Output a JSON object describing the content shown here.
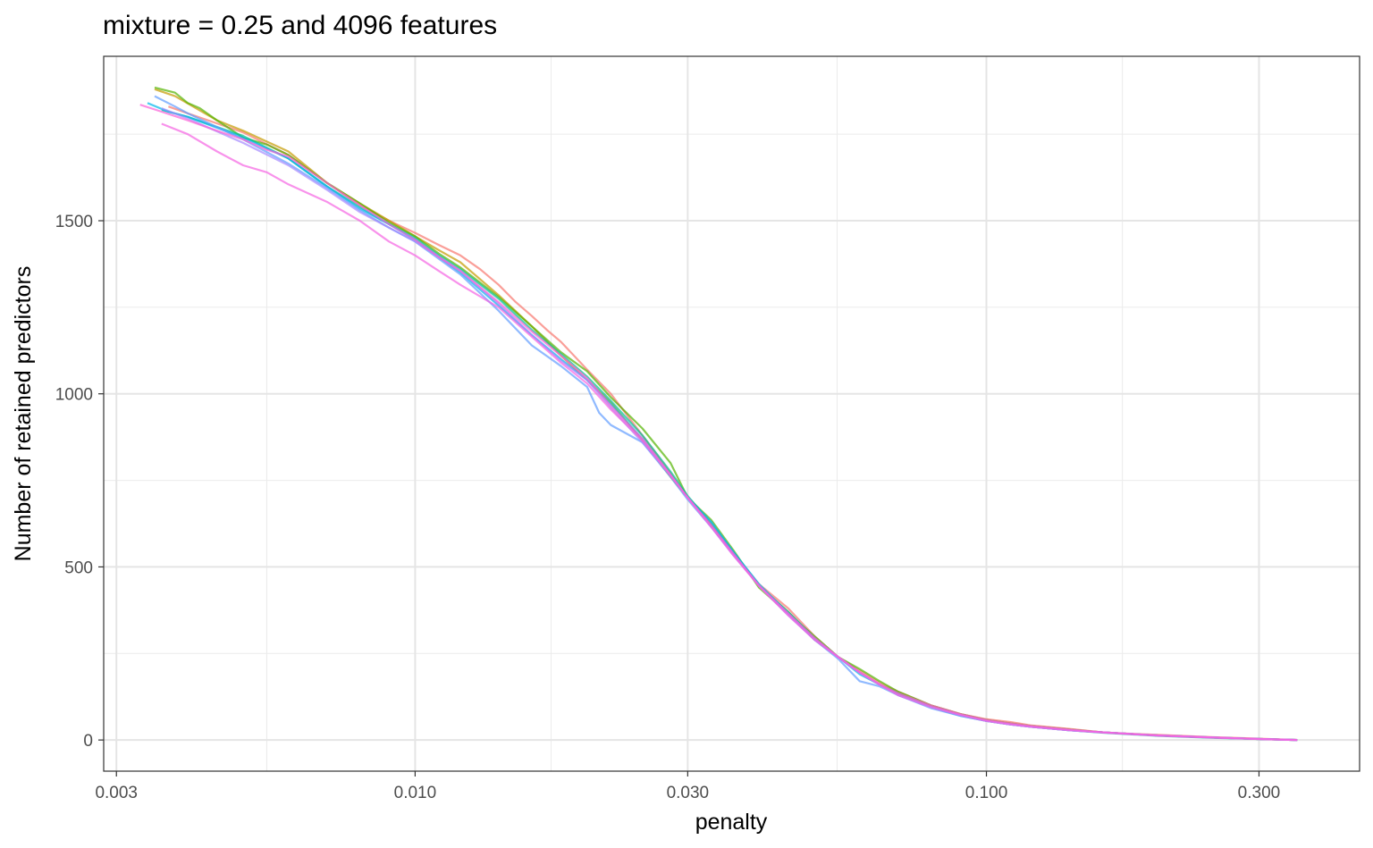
{
  "chart_data": {
    "type": "line",
    "title": "mixture =  0.25 and 4096 features",
    "xlabel": "penalty",
    "ylabel": "Number of retained predictors",
    "x_scale": "log10",
    "xlim": [
      0.00285,
      0.45
    ],
    "ylim": [
      -90,
      1975
    ],
    "x_ticks": [
      0.003,
      0.01,
      0.03,
      0.1,
      0.3
    ],
    "x_tick_labels": [
      "0.003",
      "0.010",
      "0.030",
      "0.100",
      "0.300"
    ],
    "x_minor_ticks": [
      0.0055,
      0.0173,
      0.0548,
      0.173
    ],
    "y_ticks": [
      0,
      500,
      1000,
      1500
    ],
    "y_tick_labels": [
      "0",
      "500",
      "1000",
      "1500"
    ],
    "y_minor_ticks": [
      250,
      750,
      1250,
      1750
    ],
    "grid": true,
    "legend": "none",
    "series": [
      {
        "color": "#F8766D",
        "x": [
          0.0037,
          0.004,
          0.005,
          0.006,
          0.007,
          0.008,
          0.009,
          0.01,
          0.011,
          0.012,
          0.013,
          0.014,
          0.015,
          0.016,
          0.017,
          0.018,
          0.02,
          0.022,
          0.025,
          0.028,
          0.03,
          0.033,
          0.036,
          0.04,
          0.045,
          0.05,
          0.055,
          0.06,
          0.065,
          0.07,
          0.08,
          0.09,
          0.1,
          0.11,
          0.12,
          0.14,
          0.16,
          0.18,
          0.2,
          0.25,
          0.3,
          0.35
        ],
        "values": [
          1830,
          1810,
          1755,
          1690,
          1610,
          1545,
          1500,
          1465,
          1430,
          1400,
          1360,
          1315,
          1265,
          1225,
          1185,
          1150,
          1070,
          1000,
          880,
          770,
          700,
          620,
          540,
          450,
          380,
          300,
          240,
          200,
          165,
          140,
          100,
          75,
          60,
          52,
          42,
          32,
          22,
          18,
          15,
          8,
          4,
          0
        ]
      },
      {
        "color": "#C49A00",
        "x": [
          0.0035,
          0.0038,
          0.0045,
          0.005,
          0.006,
          0.007,
          0.008,
          0.009,
          0.01,
          0.011,
          0.012,
          0.014,
          0.016,
          0.018,
          0.02,
          0.022,
          0.025,
          0.028,
          0.03,
          0.033,
          0.036,
          0.04,
          0.045,
          0.05,
          0.055,
          0.06,
          0.065,
          0.07,
          0.08,
          0.09,
          0.1,
          0.11,
          0.12,
          0.14,
          0.16,
          0.18,
          0.2,
          0.25,
          0.3,
          0.35
        ],
        "values": [
          1880,
          1860,
          1790,
          1760,
          1700,
          1610,
          1550,
          1500,
          1455,
          1415,
          1380,
          1285,
          1195,
          1110,
          1040,
          975,
          865,
          760,
          700,
          620,
          540,
          445,
          370,
          290,
          240,
          195,
          160,
          135,
          100,
          75,
          58,
          48,
          40,
          30,
          22,
          17,
          13,
          7,
          3,
          0
        ]
      },
      {
        "color": "#53B400",
        "x": [
          0.0035,
          0.0038,
          0.004,
          0.0042,
          0.0045,
          0.005,
          0.0055,
          0.006,
          0.007,
          0.008,
          0.009,
          0.01,
          0.011,
          0.012,
          0.014,
          0.016,
          0.018,
          0.02,
          0.022,
          0.025,
          0.028,
          0.03,
          0.033,
          0.036,
          0.04,
          0.045,
          0.05,
          0.055,
          0.06,
          0.065,
          0.07,
          0.08,
          0.09,
          0.1,
          0.11,
          0.12,
          0.14,
          0.16,
          0.18,
          0.2,
          0.25,
          0.3,
          0.35
        ],
        "values": [
          1885,
          1870,
          1840,
          1825,
          1790,
          1740,
          1720,
          1690,
          1610,
          1550,
          1495,
          1455,
          1405,
          1365,
          1280,
          1195,
          1120,
          1065,
          990,
          900,
          800,
          700,
          635,
          550,
          440,
          365,
          300,
          240,
          205,
          170,
          140,
          100,
          75,
          58,
          48,
          40,
          30,
          22,
          17,
          13,
          7,
          3,
          0
        ]
      },
      {
        "color": "#00C094",
        "x": [
          0.0036,
          0.004,
          0.005,
          0.006,
          0.007,
          0.008,
          0.009,
          0.01,
          0.011,
          0.012,
          0.014,
          0.016,
          0.018,
          0.02,
          0.022,
          0.025,
          0.028,
          0.03,
          0.033,
          0.036,
          0.04,
          0.045,
          0.05,
          0.055,
          0.06,
          0.065,
          0.07,
          0.08,
          0.09,
          0.1,
          0.11,
          0.12,
          0.14,
          0.16,
          0.18,
          0.2,
          0.25,
          0.3,
          0.35
        ],
        "values": [
          1820,
          1800,
          1745,
          1680,
          1600,
          1540,
          1490,
          1450,
          1400,
          1360,
          1275,
          1185,
          1115,
          1050,
          980,
          880,
          775,
          705,
          625,
          545,
          445,
          370,
          295,
          240,
          195,
          160,
          135,
          95,
          72,
          55,
          45,
          38,
          28,
          21,
          16,
          12,
          6,
          3,
          0
        ]
      },
      {
        "color": "#00B6EB",
        "x": [
          0.0034,
          0.0037,
          0.004,
          0.005,
          0.006,
          0.007,
          0.008,
          0.009,
          0.01,
          0.011,
          0.012,
          0.014,
          0.016,
          0.018,
          0.02,
          0.022,
          0.025,
          0.028,
          0.03,
          0.033,
          0.036,
          0.04,
          0.045,
          0.05,
          0.055,
          0.06,
          0.065,
          0.07,
          0.08,
          0.09,
          0.1,
          0.11,
          0.12,
          0.14,
          0.16,
          0.18,
          0.2,
          0.25,
          0.3,
          0.35
        ],
        "values": [
          1840,
          1815,
          1800,
          1740,
          1680,
          1600,
          1535,
          1490,
          1445,
          1395,
          1350,
          1255,
          1170,
          1100,
          1040,
          970,
          870,
          765,
          700,
          630,
          545,
          450,
          365,
          290,
          240,
          190,
          160,
          130,
          95,
          70,
          55,
          45,
          38,
          28,
          22,
          17,
          13,
          7,
          3,
          0
        ]
      },
      {
        "color": "#619CFF",
        "x": [
          0.0035,
          0.0038,
          0.004,
          0.005,
          0.006,
          0.007,
          0.008,
          0.009,
          0.01,
          0.011,
          0.012,
          0.014,
          0.016,
          0.018,
          0.02,
          0.021,
          0.022,
          0.025,
          0.028,
          0.03,
          0.033,
          0.036,
          0.04,
          0.045,
          0.05,
          0.055,
          0.06,
          0.065,
          0.07,
          0.08,
          0.09,
          0.1,
          0.11,
          0.12,
          0.14,
          0.16,
          0.18,
          0.2,
          0.25,
          0.3,
          0.35
        ],
        "values": [
          1860,
          1830,
          1810,
          1735,
          1665,
          1595,
          1530,
          1480,
          1440,
          1390,
          1345,
          1240,
          1140,
          1080,
          1020,
          945,
          910,
          860,
          760,
          695,
          615,
          540,
          445,
          365,
          290,
          235,
          170,
          155,
          130,
          92,
          70,
          55,
          45,
          38,
          28,
          22,
          17,
          13,
          7,
          3,
          0
        ]
      },
      {
        "color": "#A58AFF",
        "x": [
          0.0036,
          0.004,
          0.005,
          0.006,
          0.007,
          0.008,
          0.009,
          0.01,
          0.011,
          0.012,
          0.014,
          0.016,
          0.018,
          0.02,
          0.022,
          0.025,
          0.028,
          0.03,
          0.033,
          0.036,
          0.04,
          0.045,
          0.05,
          0.055,
          0.06,
          0.065,
          0.07,
          0.08,
          0.09,
          0.1,
          0.11,
          0.12,
          0.14,
          0.16,
          0.18,
          0.2,
          0.25,
          0.3,
          0.35
        ],
        "values": [
          1825,
          1795,
          1725,
          1660,
          1590,
          1525,
          1480,
          1440,
          1395,
          1355,
          1260,
          1170,
          1095,
          1040,
          960,
          860,
          765,
          700,
          615,
          535,
          445,
          360,
          290,
          240,
          195,
          160,
          130,
          95,
          72,
          55,
          45,
          38,
          28,
          22,
          17,
          13,
          7,
          3,
          0
        ]
      },
      {
        "color": "#FB61D7",
        "x": [
          0.0033,
          0.0036,
          0.004,
          0.0045,
          0.005,
          0.0055,
          0.006,
          0.007,
          0.008,
          0.009,
          0.01,
          0.011,
          0.012,
          0.014,
          0.016,
          0.018,
          0.02,
          0.022,
          0.025,
          0.028,
          0.03,
          0.033,
          0.036,
          0.04,
          0.045,
          0.05,
          0.055,
          0.06,
          0.065,
          0.07,
          0.08,
          0.09,
          0.1,
          0.11,
          0.12,
          0.14,
          0.16,
          0.18,
          0.2,
          0.25,
          0.3,
          0.35
        ],
        "values": [
          1835,
          1815,
          1790,
          1760,
          1735,
          1705,
          1685,
          1610,
          1545,
          1490,
          1445,
          1395,
          1355,
          1265,
          1180,
          1110,
          1045,
          965,
          870,
          765,
          700,
          620,
          540,
          445,
          365,
          295,
          240,
          195,
          160,
          135,
          100,
          75,
          58,
          48,
          40,
          30,
          22,
          17,
          13,
          7,
          3,
          0
        ]
      },
      {
        "color": "#F564E3",
        "x": [
          0.0036,
          0.004,
          0.0045,
          0.005,
          0.0055,
          0.006,
          0.007,
          0.008,
          0.009,
          0.01,
          0.011,
          0.012,
          0.014,
          0.016,
          0.018,
          0.02,
          0.022,
          0.025,
          0.028,
          0.03,
          0.033,
          0.036,
          0.04,
          0.045,
          0.05,
          0.055,
          0.06,
          0.065,
          0.07,
          0.08,
          0.09,
          0.1,
          0.11,
          0.12,
          0.14,
          0.16,
          0.18,
          0.2,
          0.25,
          0.3,
          0.35
        ],
        "values": [
          1780,
          1750,
          1700,
          1660,
          1640,
          1605,
          1555,
          1500,
          1440,
          1400,
          1355,
          1315,
          1250,
          1165,
          1090,
          1030,
          955,
          865,
          765,
          700,
          615,
          535,
          445,
          360,
          290,
          240,
          195,
          160,
          130,
          95,
          72,
          55,
          45,
          38,
          28,
          22,
          17,
          13,
          7,
          3,
          0
        ]
      }
    ]
  }
}
